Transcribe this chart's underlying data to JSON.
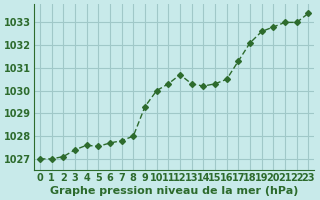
{
  "x": [
    0,
    1,
    2,
    3,
    4,
    5,
    6,
    7,
    8,
    9,
    10,
    11,
    12,
    13,
    14,
    15,
    16,
    17,
    18,
    19,
    20,
    21,
    22,
    23
  ],
  "y": [
    1027.0,
    1027.0,
    1027.1,
    1027.4,
    1027.6,
    1027.55,
    1027.7,
    1027.8,
    1028.0,
    1029.3,
    1030.0,
    1030.3,
    1030.7,
    1030.3,
    1030.2,
    1030.3,
    1030.5,
    1031.3,
    1032.1,
    1032.6,
    1032.8,
    1033.0,
    1033.0,
    1033.4
  ],
  "line_color": "#2d6b2d",
  "marker": "D",
  "marker_size": 3,
  "bg_color": "#c8eaea",
  "grid_color": "#a0c8c8",
  "ylabel_ticks": [
    1027,
    1028,
    1029,
    1030,
    1031,
    1032,
    1033
  ],
  "xlabel_ticks": [
    0,
    1,
    2,
    3,
    4,
    5,
    6,
    7,
    8,
    9,
    10,
    11,
    12,
    13,
    14,
    15,
    16,
    17,
    18,
    19,
    20,
    21,
    22,
    23
  ],
  "xlabel": "Graphe pression niveau de la mer (hPa)",
  "ylim": [
    1026.5,
    1033.8
  ],
  "xlim": [
    -0.5,
    23.5
  ],
  "title_color": "#2d6b2d",
  "xlabel_fontsize": 8,
  "tick_fontsize": 7
}
